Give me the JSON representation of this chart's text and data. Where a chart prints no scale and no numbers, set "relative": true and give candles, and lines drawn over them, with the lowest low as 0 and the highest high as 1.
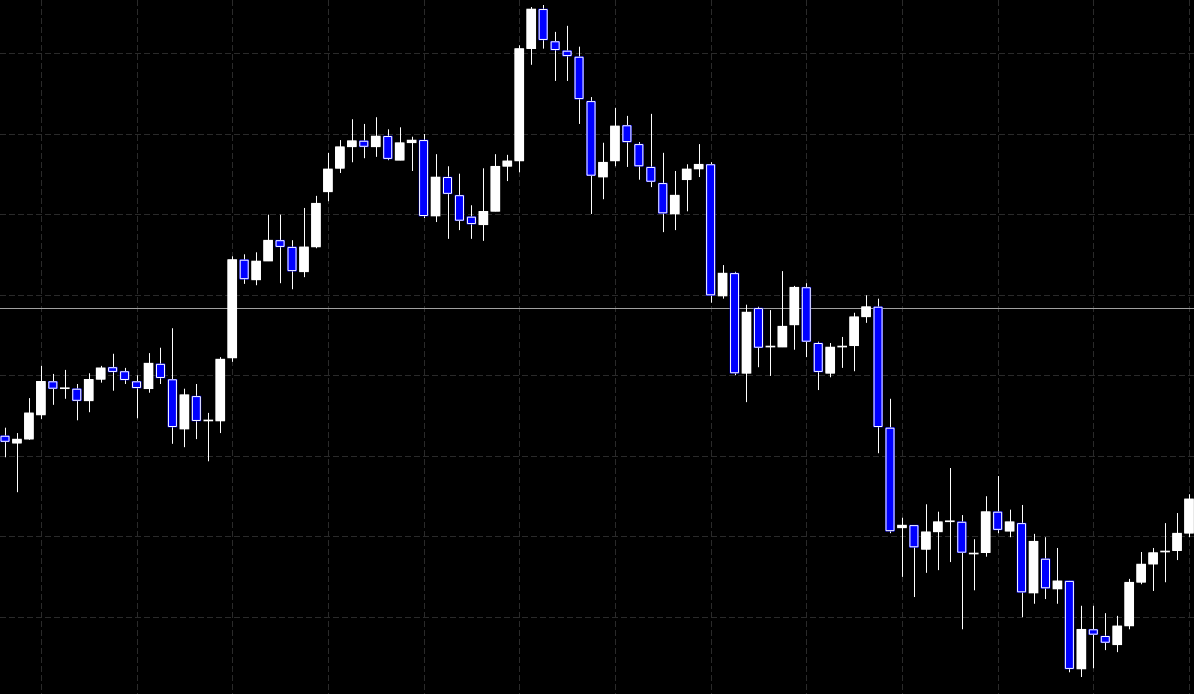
{
  "chart_data": {
    "type": "candlestick",
    "relative": true,
    "grid": true,
    "tick_labels": false,
    "color": "#ffffff",
    "categories": [
      null,
      null,
      null,
      null,
      null,
      null,
      null,
      null,
      null,
      null,
      null,
      null,
      null,
      null,
      null,
      null,
      null,
      null,
      null,
      null,
      null,
      null,
      null,
      null,
      null,
      null,
      null,
      null,
      null,
      null,
      null,
      null,
      null,
      null,
      null,
      null,
      null,
      null,
      null,
      null,
      null,
      null,
      null,
      null,
      null,
      null,
      null,
      null,
      null,
      null,
      null,
      null,
      null,
      null,
      null,
      null,
      null,
      null,
      null,
      null,
      null,
      null,
      null,
      null,
      null,
      null,
      null,
      null,
      null,
      null,
      null,
      null,
      null,
      null,
      null,
      null,
      null,
      null,
      null,
      null,
      null,
      null,
      null,
      null,
      null,
      null,
      null,
      null,
      null,
      null,
      null,
      null,
      null,
      null,
      null,
      null,
      null,
      null,
      null,
      null
    ],
    "ohlc": [
      [
        0.359,
        0.371,
        0.327,
        0.35
      ],
      [
        0.348,
        0.363,
        0.275,
        0.354
      ],
      [
        0.354,
        0.415,
        0.353,
        0.393
      ],
      [
        0.39,
        0.463,
        0.384,
        0.44
      ],
      [
        0.44,
        0.451,
        0.405,
        0.429
      ],
      [
        0.429,
        0.457,
        0.414,
        0.429
      ],
      [
        0.429,
        0.436,
        0.382,
        0.411
      ],
      [
        0.411,
        0.452,
        0.394,
        0.443
      ],
      [
        0.443,
        0.463,
        0.438,
        0.46
      ],
      [
        0.461,
        0.481,
        0.426,
        0.454
      ],
      [
        0.455,
        0.46,
        0.436,
        0.442
      ],
      [
        0.44,
        0.449,
        0.385,
        0.43
      ],
      [
        0.429,
        0.482,
        0.423,
        0.467
      ],
      [
        0.466,
        0.49,
        0.436,
        0.445
      ],
      [
        0.443,
        0.519,
        0.347,
        0.372
      ],
      [
        0.369,
        0.429,
        0.342,
        0.42
      ],
      [
        0.418,
        0.436,
        0.354,
        0.381
      ],
      [
        0.381,
        0.393,
        0.321,
        0.381
      ],
      [
        0.381,
        0.476,
        0.363,
        0.473
      ],
      [
        0.475,
        0.626,
        0.469,
        0.621
      ],
      [
        0.621,
        0.629,
        0.585,
        0.592
      ],
      [
        0.591,
        0.632,
        0.583,
        0.619
      ],
      [
        0.619,
        0.688,
        0.619,
        0.65
      ],
      [
        0.65,
        0.688,
        0.586,
        0.64
      ],
      [
        0.64,
        0.65,
        0.577,
        0.604
      ],
      [
        0.603,
        0.698,
        0.595,
        0.64
      ],
      [
        0.64,
        0.716,
        0.638,
        0.705
      ],
      [
        0.722,
        0.78,
        0.708,
        0.756
      ],
      [
        0.757,
        0.799,
        0.75,
        0.789
      ],
      [
        0.789,
        0.83,
        0.766,
        0.798
      ],
      [
        0.798,
        0.823,
        0.772,
        0.789
      ],
      [
        0.789,
        0.833,
        0.774,
        0.805
      ],
      [
        0.805,
        0.815,
        0.769,
        0.771
      ],
      [
        0.769,
        0.818,
        0.769,
        0.795
      ],
      [
        0.795,
        0.804,
        0.753,
        0.799
      ],
      [
        0.799,
        0.808,
        0.683,
        0.686
      ],
      [
        0.686,
        0.778,
        0.677,
        0.744
      ],
      [
        0.744,
        0.76,
        0.652,
        0.719
      ],
      [
        0.717,
        0.749,
        0.665,
        0.679
      ],
      [
        0.685,
        0.702,
        0.652,
        0.674
      ],
      [
        0.673,
        0.757,
        0.649,
        0.693
      ],
      [
        0.693,
        0.778,
        0.693,
        0.76
      ],
      [
        0.76,
        0.777,
        0.738,
        0.768
      ],
      [
        0.768,
        0.94,
        0.751,
        0.935
      ],
      [
        0.935,
        0.997,
        0.911,
        0.994
      ],
      [
        0.994,
        1.0,
        0.935,
        0.948
      ],
      [
        0.946,
        0.96,
        0.887,
        0.933
      ],
      [
        0.932,
        0.969,
        0.887,
        0.924
      ],
      [
        0.923,
        0.938,
        0.823,
        0.86
      ],
      [
        0.857,
        0.863,
        0.689,
        0.746
      ],
      [
        0.744,
        0.795,
        0.711,
        0.766
      ],
      [
        0.768,
        0.847,
        0.76,
        0.82
      ],
      [
        0.821,
        0.835,
        0.759,
        0.796
      ],
      [
        0.793,
        0.796,
        0.74,
        0.76
      ],
      [
        0.759,
        0.838,
        0.729,
        0.737
      ],
      [
        0.735,
        0.78,
        0.662,
        0.69
      ],
      [
        0.689,
        0.753,
        0.665,
        0.717
      ],
      [
        0.74,
        0.763,
        0.693,
        0.756
      ],
      [
        0.756,
        0.793,
        0.744,
        0.763
      ],
      [
        0.763,
        0.766,
        0.557,
        0.568
      ],
      [
        0.567,
        0.613,
        0.563,
        0.601
      ],
      [
        0.601,
        0.603,
        0.449,
        0.452
      ],
      [
        0.452,
        0.554,
        0.409,
        0.543
      ],
      [
        0.549,
        0.551,
        0.461,
        0.49
      ],
      [
        0.491,
        0.546,
        0.448,
        0.491
      ],
      [
        0.491,
        0.604,
        0.491,
        0.522
      ],
      [
        0.524,
        0.582,
        0.487,
        0.58
      ],
      [
        0.58,
        0.586,
        0.476,
        0.499
      ],
      [
        0.497,
        0.499,
        0.427,
        0.454
      ],
      [
        0.452,
        0.497,
        0.446,
        0.491
      ],
      [
        0.491,
        0.506,
        0.46,
        0.491
      ],
      [
        0.493,
        0.542,
        0.455,
        0.536
      ],
      [
        0.536,
        0.568,
        0.527,
        0.551
      ],
      [
        0.551,
        0.563,
        0.333,
        0.372
      ],
      [
        0.371,
        0.414,
        0.214,
        0.217
      ],
      [
        0.222,
        0.237,
        0.149,
        0.226
      ],
      [
        0.226,
        0.226,
        0.119,
        0.193
      ],
      [
        0.19,
        0.257,
        0.155,
        0.216
      ],
      [
        0.216,
        0.246,
        0.159,
        0.231
      ],
      [
        0.231,
        0.311,
        0.171,
        0.231
      ],
      [
        0.231,
        0.241,
        0.071,
        0.185
      ],
      [
        0.183,
        0.205,
        0.129,
        0.183
      ],
      [
        0.185,
        0.269,
        0.179,
        0.246
      ],
      [
        0.246,
        0.299,
        0.214,
        0.219
      ],
      [
        0.217,
        0.249,
        0.208,
        0.231
      ],
      [
        0.229,
        0.256,
        0.089,
        0.126
      ],
      [
        0.125,
        0.213,
        0.109,
        0.202
      ],
      [
        0.176,
        0.208,
        0.116,
        0.132
      ],
      [
        0.131,
        0.192,
        0.109,
        0.143
      ],
      [
        0.143,
        0.143,
        0.007,
        0.012
      ],
      [
        0.012,
        0.106,
        0.0,
        0.071
      ],
      [
        0.071,
        0.106,
        0.013,
        0.063
      ],
      [
        0.061,
        0.095,
        0.04,
        0.051
      ],
      [
        0.048,
        0.091,
        0.037,
        0.076
      ],
      [
        0.076,
        0.146,
        0.071,
        0.141
      ],
      [
        0.141,
        0.186,
        0.138,
        0.168
      ],
      [
        0.168,
        0.192,
        0.128,
        0.185
      ],
      [
        0.186,
        0.229,
        0.141,
        0.186
      ],
      [
        0.188,
        0.244,
        0.174,
        0.214
      ],
      [
        0.214,
        0.272,
        0.208,
        0.265
      ]
    ],
    "colors": [
      "#0000ff",
      "#ffffff",
      "#ffffff",
      "#ffffff",
      "#0000ff",
      "#ffffff",
      "#0000ff",
      "#ffffff",
      "#ffffff",
      "#0000ff",
      "#0000ff",
      "#0000ff",
      "#ffffff",
      "#0000ff",
      "#0000ff",
      "#ffffff",
      "#0000ff",
      "#ffffff",
      "#ffffff",
      "#ffffff",
      "#0000ff",
      "#ffffff",
      "#ffffff",
      "#0000ff",
      "#0000ff",
      "#ffffff",
      "#ffffff",
      "#ffffff",
      "#ffffff",
      "#ffffff",
      "#0000ff",
      "#ffffff",
      "#0000ff",
      "#ffffff",
      "#ffffff",
      "#0000ff",
      "#ffffff",
      "#0000ff",
      "#0000ff",
      "#0000ff",
      "#ffffff",
      "#ffffff",
      "#ffffff",
      "#ffffff",
      "#ffffff",
      "#0000ff",
      "#0000ff",
      "#0000ff",
      "#0000ff",
      "#0000ff",
      "#ffffff",
      "#ffffff",
      "#0000ff",
      "#0000ff",
      "#0000ff",
      "#0000ff",
      "#ffffff",
      "#ffffff",
      "#ffffff",
      "#0000ff",
      "#ffffff",
      "#0000ff",
      "#ffffff",
      "#0000ff",
      "#ffffff",
      "#ffffff",
      "#ffffff",
      "#0000ff",
      "#0000ff",
      "#ffffff",
      "#ffffff",
      "#ffffff",
      "#ffffff",
      "#0000ff",
      "#0000ff",
      "#ffffff",
      "#0000ff",
      "#ffffff",
      "#ffffff",
      "#ffffff",
      "#0000ff",
      "#ffffff",
      "#ffffff",
      "#0000ff",
      "#ffffff",
      "#0000ff",
      "#ffffff",
      "#0000ff",
      "#ffffff",
      "#0000ff",
      "#ffffff",
      "#0000ff",
      "#0000ff",
      "#ffffff",
      "#ffffff",
      "#ffffff",
      "#ffffff",
      "#ffffff",
      "#ffffff",
      "#ffffff"
    ],
    "ref_lines": [
      {
        "axis": "y",
        "value": 0.549,
        "color": "#a0a0a0"
      }
    ]
  }
}
